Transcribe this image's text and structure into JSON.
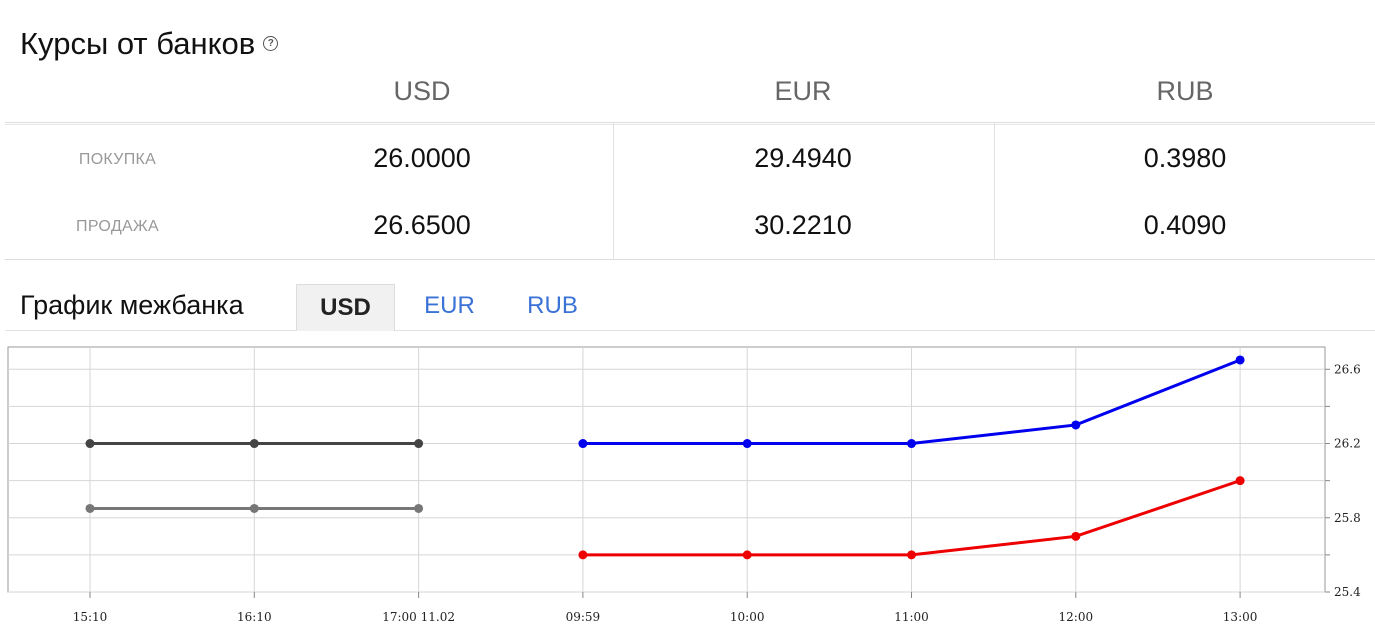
{
  "header": {
    "title": "Курсы от банков",
    "help_icon": "question-circle-icon"
  },
  "rates": {
    "columns": [
      "USD",
      "EUR",
      "RUB"
    ],
    "rows": [
      {
        "label": "ПОКУПКА",
        "values": [
          "26.0000",
          "29.4940",
          "0.3980"
        ]
      },
      {
        "label": "ПРОДАЖА",
        "values": [
          "26.6500",
          "30.2210",
          "0.4090"
        ]
      }
    ]
  },
  "interbank": {
    "title": "График межбанка",
    "tabs": [
      {
        "label": "USD",
        "active": true
      },
      {
        "label": "EUR",
        "active": false
      },
      {
        "label": "RUB",
        "active": false
      }
    ]
  },
  "chart_data": {
    "type": "line",
    "x": [
      "15:10",
      "16:10",
      "17:00 11.02",
      "09:59",
      "10:00",
      "11:00",
      "12:00",
      "13:00"
    ],
    "yticks": [
      "26.6",
      "26.2",
      "25.8",
      "25.4"
    ],
    "ylim": [
      25.4,
      26.72
    ],
    "grid": true,
    "series": [
      {
        "color": "#444444",
        "points": [
          [
            0,
            26.2
          ],
          [
            1,
            26.2
          ],
          [
            2,
            26.2
          ]
        ]
      },
      {
        "color": "#777777",
        "points": [
          [
            0,
            25.85
          ],
          [
            1,
            25.85
          ],
          [
            2,
            25.85
          ]
        ]
      },
      {
        "color": "#0000ee",
        "points": [
          [
            3,
            26.2
          ],
          [
            4,
            26.2
          ],
          [
            5,
            26.2
          ],
          [
            6,
            26.3
          ],
          [
            7,
            26.65
          ]
        ]
      },
      {
        "color": "#ee0000",
        "points": [
          [
            3,
            25.6
          ],
          [
            4,
            25.6
          ],
          [
            5,
            25.6
          ],
          [
            6,
            25.7
          ],
          [
            7,
            26.0
          ]
        ]
      }
    ]
  }
}
